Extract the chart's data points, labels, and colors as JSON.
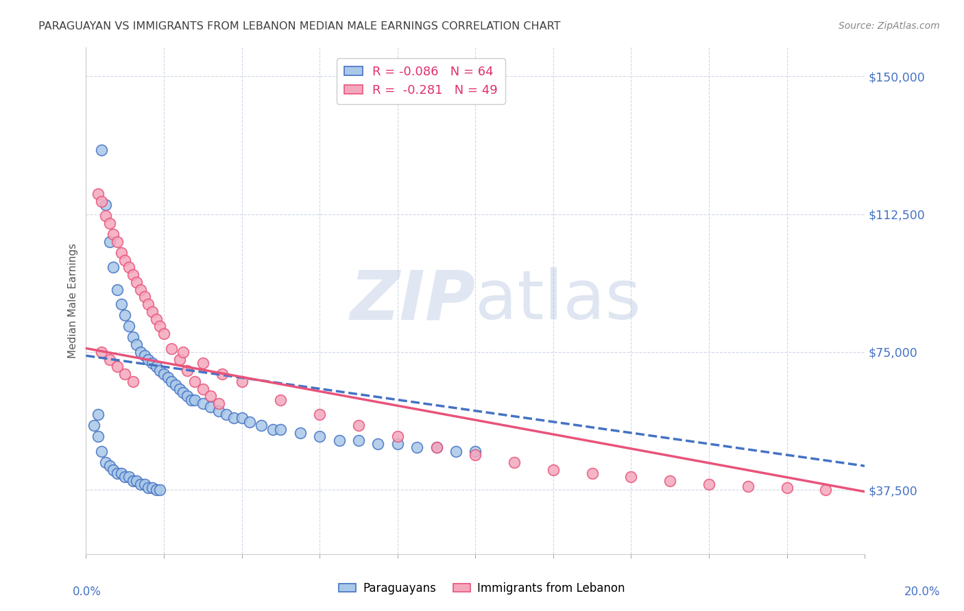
{
  "title": "PARAGUAYAN VS IMMIGRANTS FROM LEBANON MEDIAN MALE EARNINGS CORRELATION CHART",
  "source": "Source: ZipAtlas.com",
  "ylabel": "Median Male Earnings",
  "y_ticks": [
    37500,
    75000,
    112500,
    150000
  ],
  "y_tick_labels": [
    "$37,500",
    "$75,000",
    "$112,500",
    "$150,000"
  ],
  "x_min": 0.0,
  "x_max": 0.2,
  "y_min": 20000,
  "y_max": 158000,
  "blue_R": "-0.086",
  "blue_N": "64",
  "pink_R": "-0.281",
  "pink_N": "49",
  "legend_label_blue": "Paraguayans",
  "legend_label_pink": "Immigrants from Lebanon",
  "dot_color_blue": "#aac8e8",
  "dot_color_pink": "#f4a8be",
  "trend_color_blue": "#4472c4",
  "trend_color_pink": "#e8537a",
  "background_color": "#ffffff",
  "grid_color": "#d0d8e8",
  "title_color": "#404040",
  "axis_label_color": "#4472c4",
  "watermark_zip": "ZIP",
  "watermark_atlas": "atlas",
  "blue_x": [
    0.004,
    0.005,
    0.006,
    0.007,
    0.008,
    0.009,
    0.01,
    0.011,
    0.012,
    0.013,
    0.014,
    0.015,
    0.016,
    0.017,
    0.018,
    0.019,
    0.02,
    0.021,
    0.022,
    0.023,
    0.024,
    0.025,
    0.026,
    0.027,
    0.028,
    0.03,
    0.032,
    0.034,
    0.036,
    0.038,
    0.04,
    0.042,
    0.045,
    0.048,
    0.05,
    0.055,
    0.06,
    0.065,
    0.07,
    0.075,
    0.08,
    0.085,
    0.09,
    0.095,
    0.1,
    0.002,
    0.003,
    0.003,
    0.004,
    0.005,
    0.006,
    0.007,
    0.008,
    0.009,
    0.01,
    0.011,
    0.012,
    0.013,
    0.014,
    0.015,
    0.016,
    0.017,
    0.018,
    0.019
  ],
  "blue_y": [
    130000,
    115000,
    105000,
    98000,
    92000,
    88000,
    85000,
    82000,
    79000,
    77000,
    75000,
    74000,
    73000,
    72000,
    71000,
    70000,
    69000,
    68000,
    67000,
    66000,
    65000,
    64000,
    63000,
    62000,
    62000,
    61000,
    60000,
    59000,
    58000,
    57000,
    57000,
    56000,
    55000,
    54000,
    54000,
    53000,
    52000,
    51000,
    51000,
    50000,
    50000,
    49000,
    49000,
    48000,
    48000,
    55000,
    58000,
    52000,
    48000,
    45000,
    44000,
    43000,
    42000,
    42000,
    41000,
    41000,
    40000,
    40000,
    39000,
    39000,
    38000,
    38000,
    37500,
    37500
  ],
  "pink_x": [
    0.003,
    0.004,
    0.005,
    0.006,
    0.007,
    0.008,
    0.009,
    0.01,
    0.011,
    0.012,
    0.013,
    0.014,
    0.015,
    0.016,
    0.017,
    0.018,
    0.019,
    0.02,
    0.022,
    0.024,
    0.026,
    0.028,
    0.03,
    0.032,
    0.034,
    0.025,
    0.03,
    0.035,
    0.04,
    0.05,
    0.06,
    0.07,
    0.08,
    0.09,
    0.1,
    0.11,
    0.12,
    0.13,
    0.14,
    0.15,
    0.16,
    0.17,
    0.18,
    0.19,
    0.004,
    0.006,
    0.008,
    0.01,
    0.012
  ],
  "pink_y": [
    118000,
    116000,
    112000,
    110000,
    107000,
    105000,
    102000,
    100000,
    98000,
    96000,
    94000,
    92000,
    90000,
    88000,
    86000,
    84000,
    82000,
    80000,
    76000,
    73000,
    70000,
    67000,
    65000,
    63000,
    61000,
    75000,
    72000,
    69000,
    67000,
    62000,
    58000,
    55000,
    52000,
    49000,
    47000,
    45000,
    43000,
    42000,
    41000,
    40000,
    39000,
    38500,
    38000,
    37500,
    75000,
    73000,
    71000,
    69000,
    67000
  ],
  "blue_trend_x0": 0.0,
  "blue_trend_y0": 74000,
  "blue_trend_x1": 0.2,
  "blue_trend_y1": 44000,
  "pink_trend_x0": 0.0,
  "pink_trend_y0": 76000,
  "pink_trend_x1": 0.2,
  "pink_trend_y1": 37000
}
